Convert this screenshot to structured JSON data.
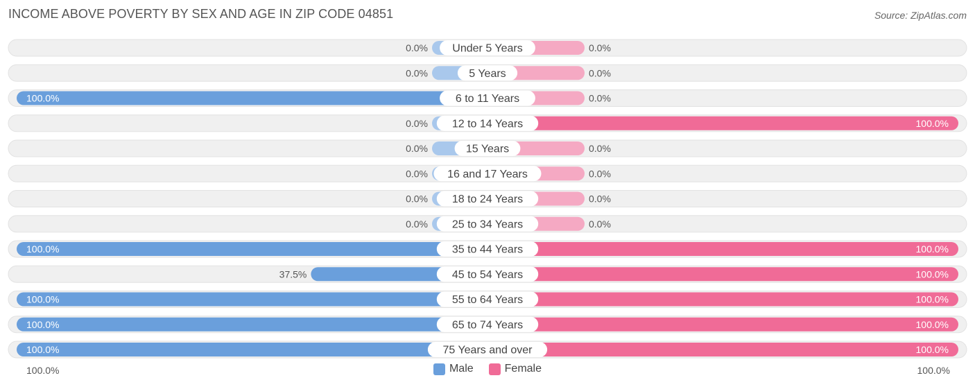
{
  "title": "INCOME ABOVE POVERTY BY SEX AND AGE IN ZIP CODE 04851",
  "source": "Source: ZipAtlas.com",
  "colors": {
    "male": "#6a9fdc",
    "male_light": "#a9c8ec",
    "female": "#f06b97",
    "female_light": "#f5a9c3",
    "track": "#f0f0f0"
  },
  "chart_data": {
    "type": "bar",
    "orientation": "horizontal-diverging",
    "categories": [
      "Under 5 Years",
      "5 Years",
      "6 to 11 Years",
      "12 to 14 Years",
      "15 Years",
      "16 and 17 Years",
      "18 to 24 Years",
      "25 to 34 Years",
      "35 to 44 Years",
      "45 to 54 Years",
      "55 to 64 Years",
      "65 to 74 Years",
      "75 Years and over"
    ],
    "series": [
      {
        "name": "Male",
        "values": [
          0.0,
          0.0,
          100.0,
          0.0,
          0.0,
          0.0,
          0.0,
          0.0,
          100.0,
          37.5,
          100.0,
          100.0,
          100.0
        ]
      },
      {
        "name": "Female",
        "values": [
          0.0,
          0.0,
          0.0,
          100.0,
          0.0,
          0.0,
          0.0,
          0.0,
          100.0,
          100.0,
          100.0,
          100.0,
          100.0
        ]
      }
    ],
    "value_labels": {
      "male": [
        "0.0%",
        "0.0%",
        "100.0%",
        "0.0%",
        "0.0%",
        "0.0%",
        "0.0%",
        "0.0%",
        "100.0%",
        "37.5%",
        "100.0%",
        "100.0%",
        "100.0%"
      ],
      "female": [
        "0.0%",
        "0.0%",
        "0.0%",
        "100.0%",
        "0.0%",
        "0.0%",
        "0.0%",
        "0.0%",
        "100.0%",
        "100.0%",
        "100.0%",
        "100.0%",
        "100.0%"
      ]
    },
    "xlim": [
      0,
      100
    ],
    "axis_left_label": "100.0%",
    "axis_right_label": "100.0%",
    "legend": [
      "Male",
      "Female"
    ],
    "legend_position": "bottom-center"
  }
}
